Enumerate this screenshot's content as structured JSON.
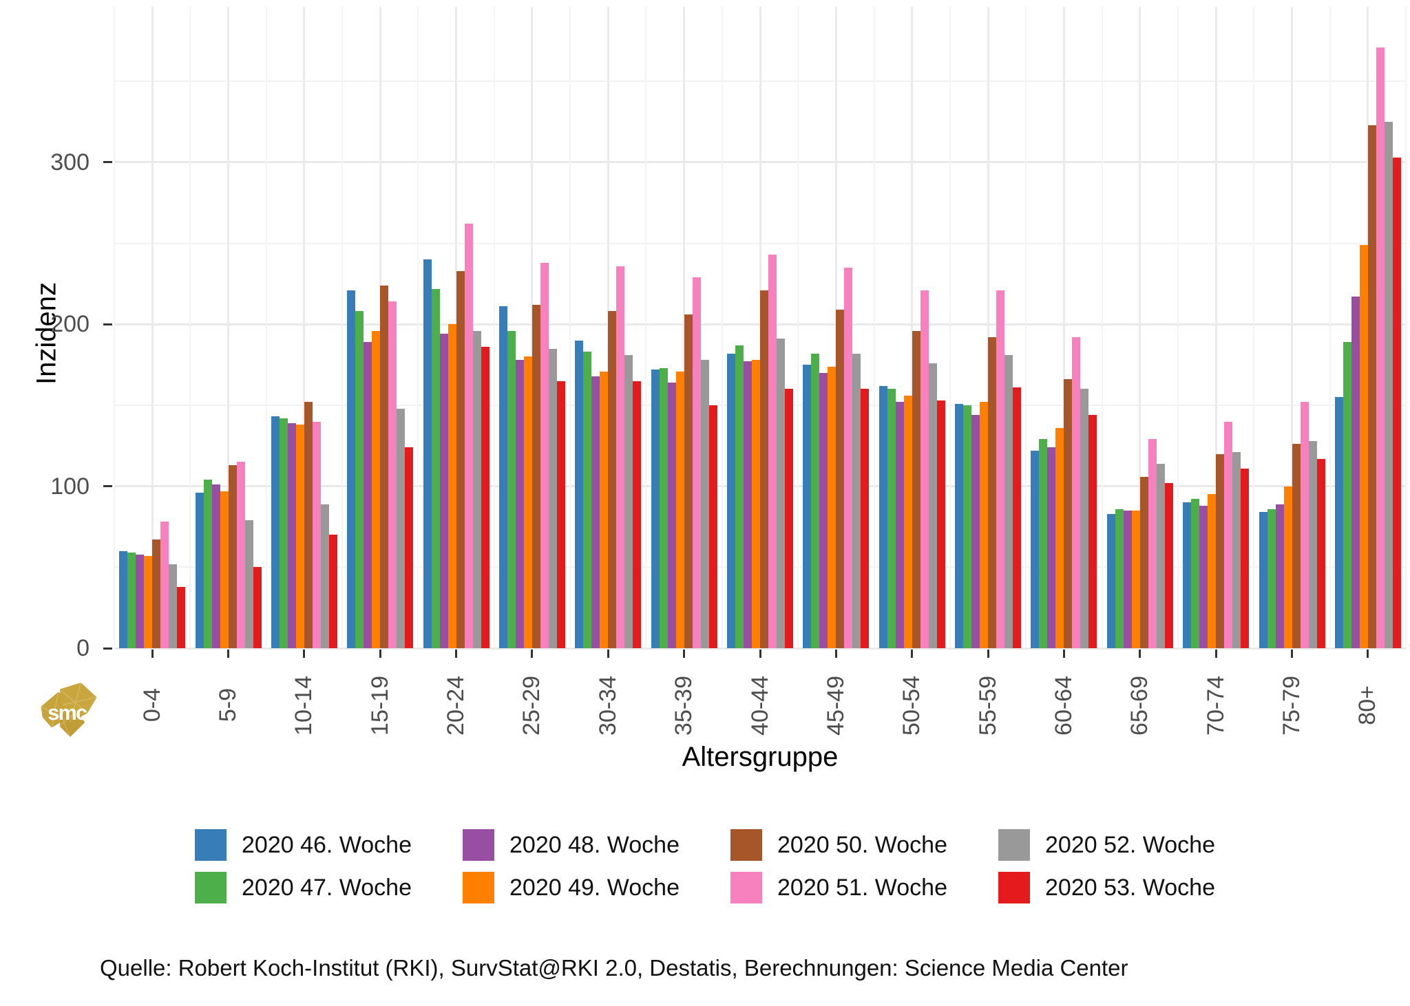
{
  "chart_data": {
    "type": "bar",
    "title": "",
    "ylabel": "Inzidenz",
    "xlabel": "Altersgruppe",
    "categories": [
      "0-4",
      "5-9",
      "10-14",
      "15-19",
      "20-24",
      "25-29",
      "30-34",
      "35-39",
      "40-44",
      "45-49",
      "50-54",
      "55-59",
      "60-64",
      "65-69",
      "70-74",
      "75-79",
      "80+"
    ],
    "series": [
      {
        "name": "2020 46. Woche",
        "color": "#377EB8",
        "values": [
          60,
          96,
          143,
          221,
          240,
          211,
          190,
          172,
          182,
          175,
          162,
          151,
          122,
          83,
          90,
          84,
          155
        ]
      },
      {
        "name": "2020 47. Woche",
        "color": "#4DAF4A",
        "values": [
          59,
          104,
          142,
          208,
          222,
          196,
          183,
          173,
          187,
          182,
          160,
          150,
          129,
          86,
          92,
          86,
          189
        ]
      },
      {
        "name": "2020 48. Woche",
        "color": "#984EA3",
        "values": [
          58,
          101,
          139,
          189,
          194,
          178,
          168,
          164,
          177,
          170,
          152,
          144,
          124,
          85,
          88,
          89,
          217
        ]
      },
      {
        "name": "2020 49. Woche",
        "color": "#FF7F00",
        "values": [
          57,
          97,
          138,
          196,
          200,
          180,
          171,
          171,
          178,
          174,
          156,
          152,
          136,
          85,
          95,
          100,
          249
        ]
      },
      {
        "name": "2020 50. Woche",
        "color": "#A65628",
        "values": [
          67,
          113,
          152,
          224,
          233,
          212,
          208,
          206,
          221,
          209,
          196,
          192,
          166,
          106,
          120,
          126,
          323
        ]
      },
      {
        "name": "2020 51. Woche",
        "color": "#F781BF",
        "values": [
          78,
          115,
          140,
          214,
          262,
          238,
          236,
          229,
          243,
          235,
          221,
          221,
          192,
          129,
          140,
          152,
          371
        ]
      },
      {
        "name": "2020 52. Woche",
        "color": "#999999",
        "values": [
          52,
          79,
          89,
          148,
          196,
          185,
          181,
          178,
          191,
          182,
          176,
          181,
          160,
          114,
          121,
          128,
          325
        ]
      },
      {
        "name": "2020 53. Woche",
        "color": "#E41A1C",
        "values": [
          38,
          50,
          70,
          124,
          186,
          165,
          165,
          150,
          160,
          160,
          153,
          161,
          144,
          102,
          111,
          117,
          303
        ]
      }
    ],
    "y_ticks": [
      0,
      100,
      200,
      300
    ],
    "y_minor_ticks": [
      50,
      150,
      250,
      350
    ],
    "ylim": [
      0,
      396
    ],
    "grid": true,
    "legend_position": "bottom-center"
  },
  "source": "Quelle: Robert Koch-Institut (RKI), SurvStat@RKI 2.0, Destatis, Berechnungen: Science Media Center",
  "logo": {
    "text": "smc",
    "color": "#C7A33C"
  }
}
